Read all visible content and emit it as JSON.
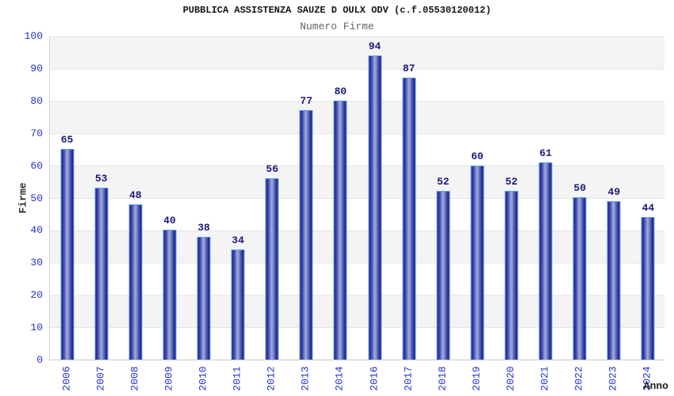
{
  "header": {
    "title": "PUBBLICA ASSISTENZA SAUZE D OULX ODV (c.f.05530120012)",
    "subtitle": "Numero Firme"
  },
  "chart_data": {
    "type": "bar",
    "title": "PUBBLICA ASSISTENZA SAUZE D OULX ODV (c.f.05530120012)",
    "subtitle": "Numero Firme",
    "categories": [
      "2006",
      "2007",
      "2008",
      "2009",
      "2010",
      "2011",
      "2012",
      "2013",
      "2014",
      "2016",
      "2017",
      "2018",
      "2019",
      "2020",
      "2021",
      "2022",
      "2023",
      "2024"
    ],
    "values": [
      65,
      53,
      48,
      40,
      38,
      34,
      56,
      77,
      80,
      94,
      87,
      52,
      60,
      52,
      61,
      50,
      49,
      44
    ],
    "xlabel": "Anno",
    "ylabel": "Firme",
    "ylim": [
      0,
      100
    ],
    "ytick_step": 10,
    "grid": true,
    "legend": false,
    "value_labels_shown": true,
    "colors": {
      "bar_dark": "#1f2793",
      "bar_light": "#9fa9e0",
      "bar_border": "#5fa0e8",
      "tick_label": "#2533cc",
      "value_label": "#19197e",
      "band_gray": "#f4f4f4",
      "gridline": "#e4e4e4",
      "axis_line": "#c8c8c8",
      "title_color": "#141414",
      "subtitle_color": "#666666",
      "axis_title_color": "#2b2b2b"
    }
  }
}
